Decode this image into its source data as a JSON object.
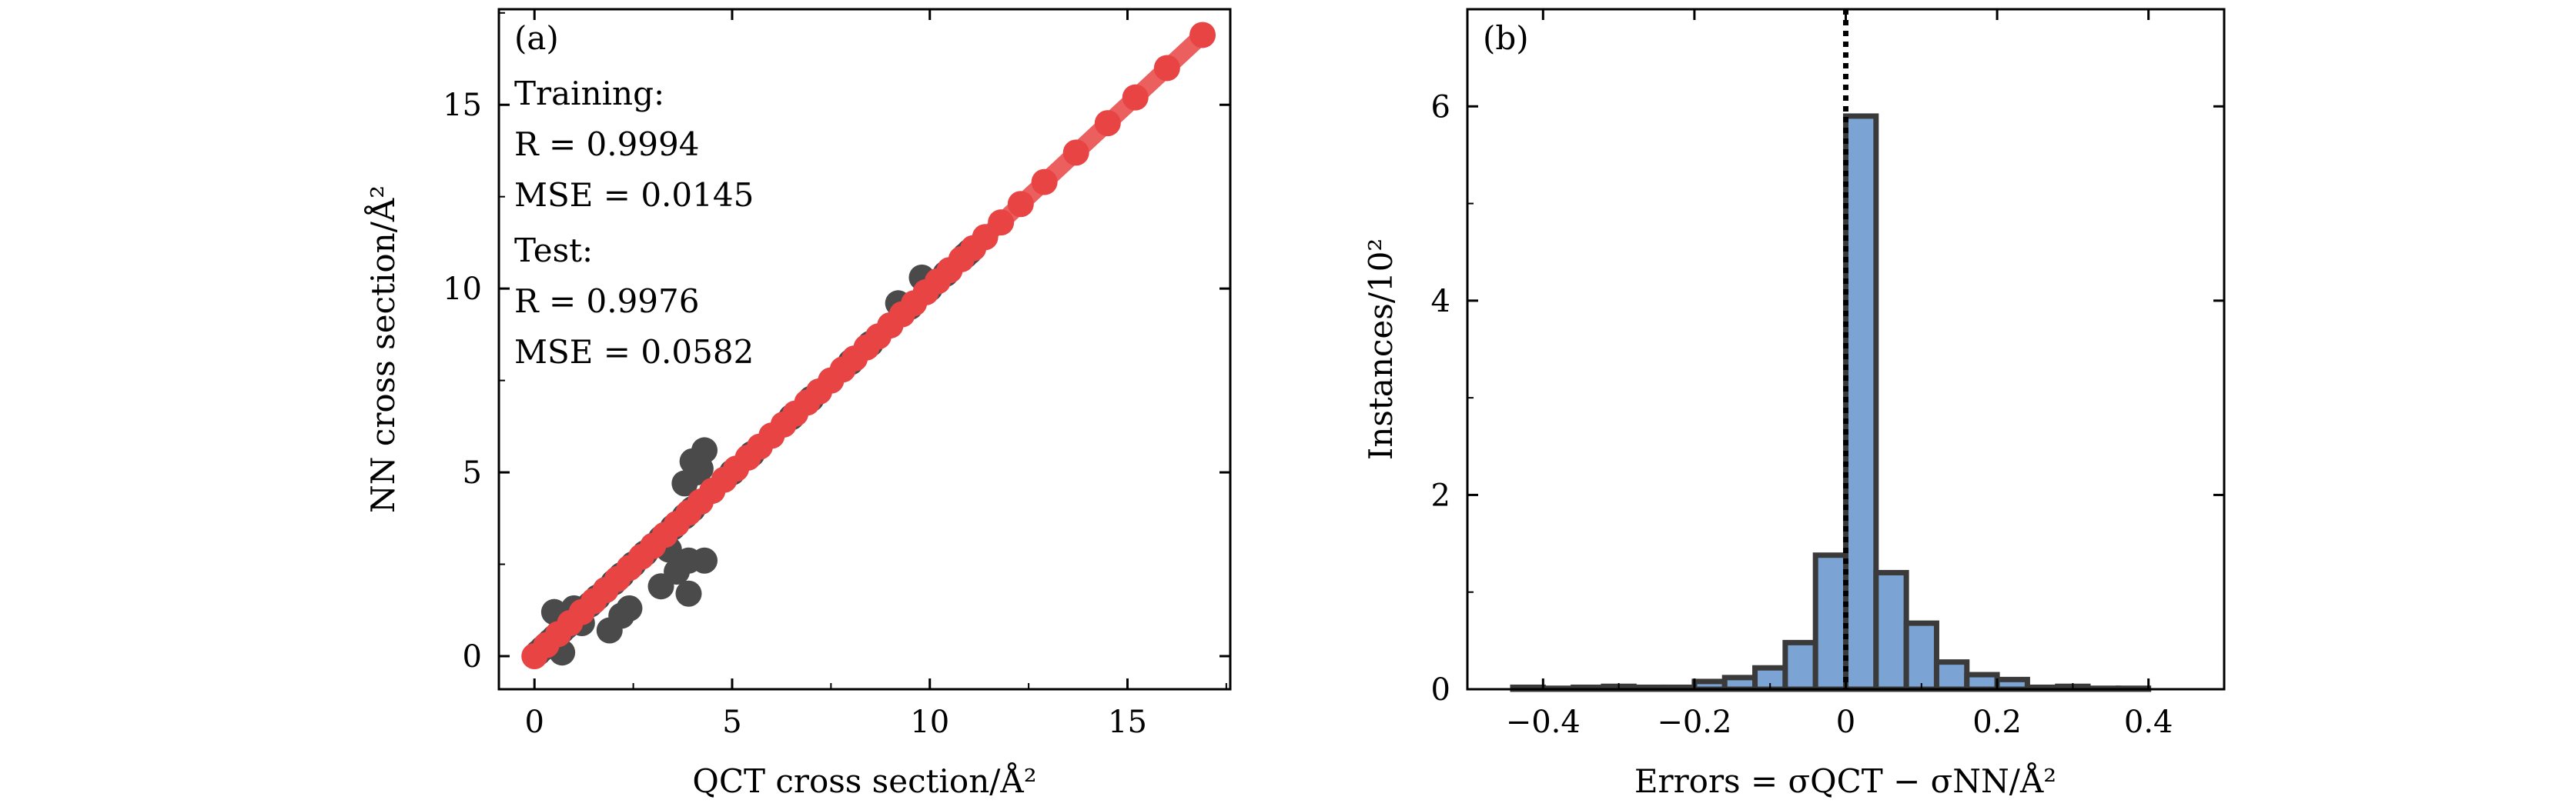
{
  "figure": {
    "panel_a": {
      "tag": "(a)",
      "training_label": "Training:",
      "training_r": "R = 0.9994",
      "training_mse": "MSE = 0.0145",
      "test_label": "Test:",
      "test_r": "R = 0.9976",
      "test_mse": "MSE = 0.0582"
    },
    "panel_b": {
      "tag": "(b)"
    }
  },
  "colors": {
    "training": "#e84444",
    "test": "#4a4a4a",
    "hist_fill": "#7ba3d4",
    "hist_edge": "#3a3a3a",
    "axis": "#000000"
  },
  "chart_data": [
    {
      "type": "scatter",
      "title": "(a)",
      "xlabel": "QCT cross section/Å²",
      "ylabel": "NN cross section/Å²",
      "xlim": [
        -0.9,
        17.6
      ],
      "ylim": [
        -0.9,
        17.6
      ],
      "xticks": [
        0,
        5,
        10,
        15
      ],
      "yticks": [
        0,
        5,
        10,
        15
      ],
      "series": [
        {
          "name": "Test",
          "x": [
            0.1,
            0.2,
            0.3,
            0.4,
            0.5,
            0.6,
            0.7,
            0.8,
            1.0,
            1.2,
            1.4,
            1.6,
            1.8,
            2.0,
            2.2,
            2.5,
            2.8,
            3.0,
            3.2,
            3.5,
            3.8,
            4.0,
            4.2,
            4.5,
            5.0,
            5.5,
            6.0,
            6.5,
            7.0,
            7.5,
            8.0,
            8.5,
            9.0,
            9.5,
            10.0,
            10.5,
            11.0,
            0.5,
            0.7,
            1.2,
            1.9,
            2.2,
            2.4,
            3.3,
            3.6,
            3.9,
            4.1,
            4.3,
            3.8,
            4.0,
            4.2,
            3.9,
            3.2,
            3.4,
            4.3,
            1.0,
            0.6,
            9.2,
            9.8,
            10.4,
            10.9,
            7.2
          ],
          "y": [
            0.1,
            0.2,
            0.3,
            0.4,
            0.5,
            0.6,
            0.7,
            0.8,
            1.0,
            1.2,
            1.4,
            1.6,
            1.8,
            2.0,
            2.2,
            2.5,
            2.8,
            3.0,
            3.2,
            3.5,
            3.8,
            4.0,
            4.2,
            4.5,
            5.0,
            5.5,
            6.0,
            6.5,
            7.0,
            7.5,
            8.0,
            8.5,
            9.0,
            9.5,
            10.0,
            10.5,
            11.0,
            1.2,
            0.1,
            0.9,
            0.7,
            1.1,
            1.3,
            3.1,
            2.3,
            2.6,
            5.0,
            5.6,
            4.7,
            5.3,
            5.1,
            1.7,
            1.9,
            2.9,
            2.6,
            1.3,
            0.6,
            9.6,
            10.3,
            10.4,
            10.9,
            7.2
          ]
        },
        {
          "name": "Training",
          "x": [
            0.0,
            0.3,
            0.6,
            0.9,
            1.2,
            1.5,
            1.8,
            2.1,
            2.4,
            2.7,
            3.0,
            3.3,
            3.6,
            3.9,
            4.2,
            4.5,
            4.8,
            5.1,
            5.4,
            5.7,
            6.0,
            6.3,
            6.6,
            6.9,
            7.2,
            7.5,
            7.8,
            8.1,
            8.4,
            8.7,
            9.0,
            9.3,
            9.6,
            9.9,
            10.2,
            10.5,
            10.8,
            11.1,
            11.4,
            11.8,
            12.3,
            12.9,
            13.7,
            14.5,
            15.2,
            16.0,
            16.9
          ],
          "y": [
            0.0,
            0.3,
            0.6,
            0.9,
            1.2,
            1.5,
            1.8,
            2.1,
            2.4,
            2.7,
            3.0,
            3.3,
            3.6,
            3.9,
            4.2,
            4.5,
            4.8,
            5.1,
            5.4,
            5.7,
            6.0,
            6.3,
            6.6,
            6.9,
            7.2,
            7.5,
            7.8,
            8.1,
            8.4,
            8.7,
            9.0,
            9.3,
            9.6,
            9.9,
            10.2,
            10.5,
            10.8,
            11.1,
            11.4,
            11.8,
            12.3,
            12.9,
            13.7,
            14.5,
            15.2,
            16.0,
            16.9
          ]
        }
      ],
      "annotations": [
        "Training:",
        "R = 0.9994",
        "MSE = 0.0145",
        "Test:",
        "R = 0.9976",
        "MSE = 0.0582"
      ]
    },
    {
      "type": "bar",
      "title": "(b)",
      "xlabel": "Errors = σQCT − σNN/Å²",
      "ylabel": "Instances/10²",
      "xlim": [
        -0.5,
        0.5
      ],
      "ylim": [
        0,
        7
      ],
      "xticks": [
        -0.4,
        -0.2,
        0,
        0.2,
        0.4
      ],
      "xtick_labels": [
        "−0.4",
        "−0.2",
        "0",
        "0.2",
        "0.4"
      ],
      "yticks": [
        0,
        2,
        4,
        6
      ],
      "bin_width": 0.04,
      "bin_left_edges": [
        -0.44,
        -0.4,
        -0.36,
        -0.32,
        -0.28,
        -0.24,
        -0.2,
        -0.16,
        -0.12,
        -0.08,
        -0.04,
        0.0,
        0.04,
        0.08,
        0.12,
        0.16,
        0.2,
        0.24,
        0.28,
        0.32,
        0.36
      ],
      "values": [
        0.02,
        0.01,
        0.02,
        0.03,
        0.02,
        0.02,
        0.08,
        0.12,
        0.22,
        0.48,
        1.38,
        5.9,
        1.2,
        0.68,
        0.28,
        0.15,
        0.1,
        0.02,
        0.03,
        0.01,
        0.01
      ],
      "vline_x": 0,
      "vline_style": "dotted"
    }
  ]
}
